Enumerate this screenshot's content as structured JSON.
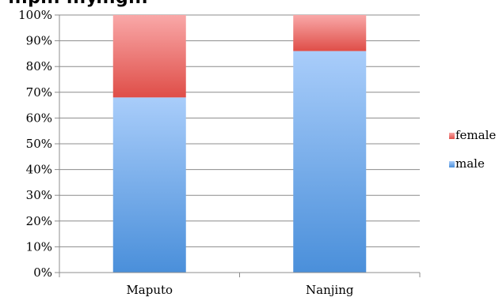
{
  "chart_data": {
    "type": "bar",
    "stacked": true,
    "title": "...p... ...y...g...",
    "categories": [
      "Maputo",
      "Nanjing"
    ],
    "series": [
      {
        "name": "male",
        "values": [
          68,
          86
        ]
      },
      {
        "name": "female",
        "values": [
          32,
          14
        ]
      }
    ],
    "ylim": [
      0,
      100
    ],
    "yticks": [
      "0%",
      "10%",
      "20%",
      "30%",
      "40%",
      "50%",
      "60%",
      "70%",
      "80%",
      "90%",
      "100%"
    ],
    "grid": true,
    "legend_position": "right",
    "colors": {
      "male_top": "#a9cdfa",
      "male_bottom": "#4a8fda",
      "female_top": "#f9a8a8",
      "female_bottom": "#df4e48"
    }
  }
}
